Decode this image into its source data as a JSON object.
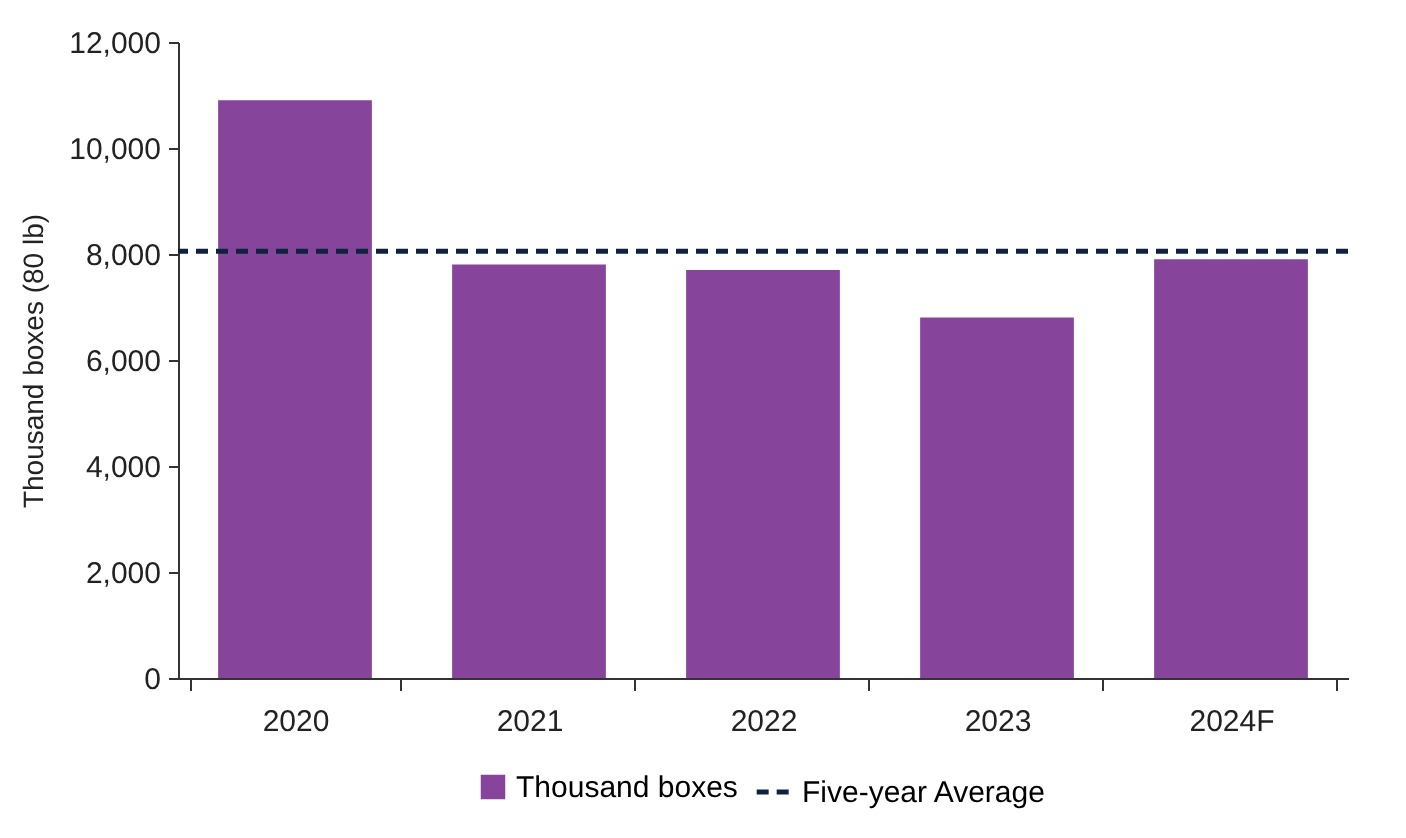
{
  "chart_data": {
    "type": "bar",
    "ylabel": "Thousand boxes (80 lb)",
    "categories": [
      "2020",
      "2021",
      "2022",
      "2023",
      "2024F"
    ],
    "series": [
      {
        "name": "Thousand boxes",
        "color": "#86449a",
        "values": [
          10900,
          7800,
          7700,
          6800,
          7900
        ]
      }
    ],
    "ylim": [
      0,
      12000
    ],
    "yticks": [
      0,
      {
        "value": 2000,
        "label": "2,000"
      },
      {
        "value": 4000,
        "label": "4,000"
      },
      {
        "value": 6000,
        "label": "6,000"
      },
      {
        "value": 8000,
        "label": "8,000"
      },
      {
        "value": 10000,
        "label": "10,000"
      },
      {
        "value": 12000,
        "label": "12,000"
      }
    ],
    "grid": false,
    "legend": "bottom",
    "ref_lines": [
      {
        "axis": "y",
        "value": 8050,
        "label": "Five-year Average",
        "color": "#0e2240",
        "line_style": "dashed"
      }
    ]
  }
}
